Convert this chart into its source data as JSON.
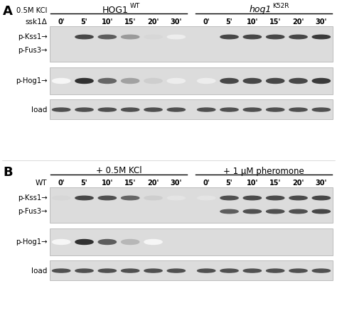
{
  "bg_color": "#ffffff",
  "blot_bg_light": "#e0e0e0",
  "blot_bg_dark": "#d0d0d0",
  "panel_A": {
    "label": "A",
    "condition_label": "0.5M KCl",
    "group1_label": "HOG1",
    "group1_super": "WT",
    "group2_label": "hog1",
    "group2_super": "K52R",
    "row_label": "ssk1Δ",
    "time_points": [
      "0'",
      "5'",
      "10'",
      "15'",
      "20'",
      "30'"
    ],
    "blot1_label1": "p-Kss1→",
    "blot1_label2": "p-Fus3→",
    "blot2_label": "p-Hog1→",
    "blot3_label": "load",
    "blot1_kss1_g1": [
      0.0,
      0.82,
      0.72,
      0.45,
      0.18,
      0.08
    ],
    "blot1_kss1_g2": [
      0.0,
      0.82,
      0.82,
      0.82,
      0.82,
      0.88
    ],
    "blot1_fus3_g1": [
      0.0,
      0.0,
      0.0,
      0.0,
      0.0,
      0.0
    ],
    "blot1_fus3_g2": [
      0.0,
      0.0,
      0.0,
      0.0,
      0.0,
      0.0
    ],
    "blot2_g1": [
      0.04,
      0.92,
      0.68,
      0.42,
      0.22,
      0.08
    ],
    "blot2_g2": [
      0.08,
      0.82,
      0.82,
      0.82,
      0.82,
      0.88
    ],
    "load_g1": [
      0.78,
      0.78,
      0.78,
      0.78,
      0.78,
      0.78
    ],
    "load_g2": [
      0.78,
      0.78,
      0.78,
      0.78,
      0.78,
      0.78
    ]
  },
  "panel_B": {
    "label": "B",
    "group1_label": "+ 0.5M KCl",
    "group2_label": "+ 1 μM pheromone",
    "row_label": "WT",
    "time_points": [
      "0'",
      "5'",
      "10'",
      "15'",
      "20'",
      "30'"
    ],
    "blot1_label1": "p-Kss1→",
    "blot1_label2": "p-Fus3→",
    "blot2_label": "p-Hog1→",
    "blot3_label": "load",
    "blot1_kss1_g1": [
      0.18,
      0.82,
      0.78,
      0.68,
      0.22,
      0.12
    ],
    "blot1_kss1_g2": [
      0.12,
      0.78,
      0.8,
      0.8,
      0.8,
      0.82
    ],
    "blot1_fus3_g1": [
      0.0,
      0.0,
      0.0,
      0.0,
      0.0,
      0.0
    ],
    "blot1_fus3_g2": [
      0.0,
      0.72,
      0.78,
      0.78,
      0.78,
      0.82
    ],
    "blot2_g1": [
      0.04,
      0.92,
      0.72,
      0.32,
      0.04,
      0.0
    ],
    "blot2_g2": [
      0.0,
      0.0,
      0.0,
      0.0,
      0.0,
      0.0
    ],
    "load_g1": [
      0.78,
      0.78,
      0.78,
      0.78,
      0.78,
      0.78
    ],
    "load_g2": [
      0.78,
      0.78,
      0.78,
      0.78,
      0.78,
      0.78
    ]
  }
}
